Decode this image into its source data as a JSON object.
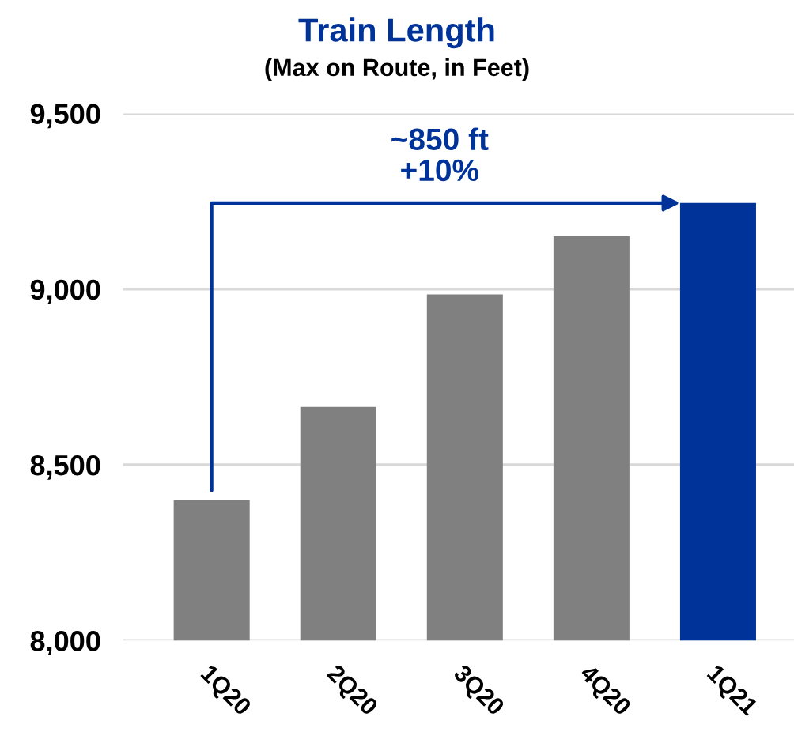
{
  "chart_data": {
    "type": "bar",
    "title": "Train Length",
    "subtitle": "(Max on Route, in Feet)",
    "categories": [
      "1Q20",
      "2Q20",
      "3Q20",
      "4Q20",
      "1Q21"
    ],
    "values": [
      8400,
      8665,
      8985,
      9150,
      9245
    ],
    "colors": [
      "#808080",
      "#808080",
      "#808080",
      "#808080",
      "#003399"
    ],
    "ylim": [
      8000,
      9500
    ],
    "yticks": [
      {
        "value": 8000,
        "label": "8,000"
      },
      {
        "value": 8500,
        "label": "8,500"
      },
      {
        "value": 9000,
        "label": "9,000"
      },
      {
        "value": 9500,
        "label": "9,500"
      }
    ],
    "grid": "y",
    "annotations": [
      "~850 ft\n+10%"
    ]
  }
}
